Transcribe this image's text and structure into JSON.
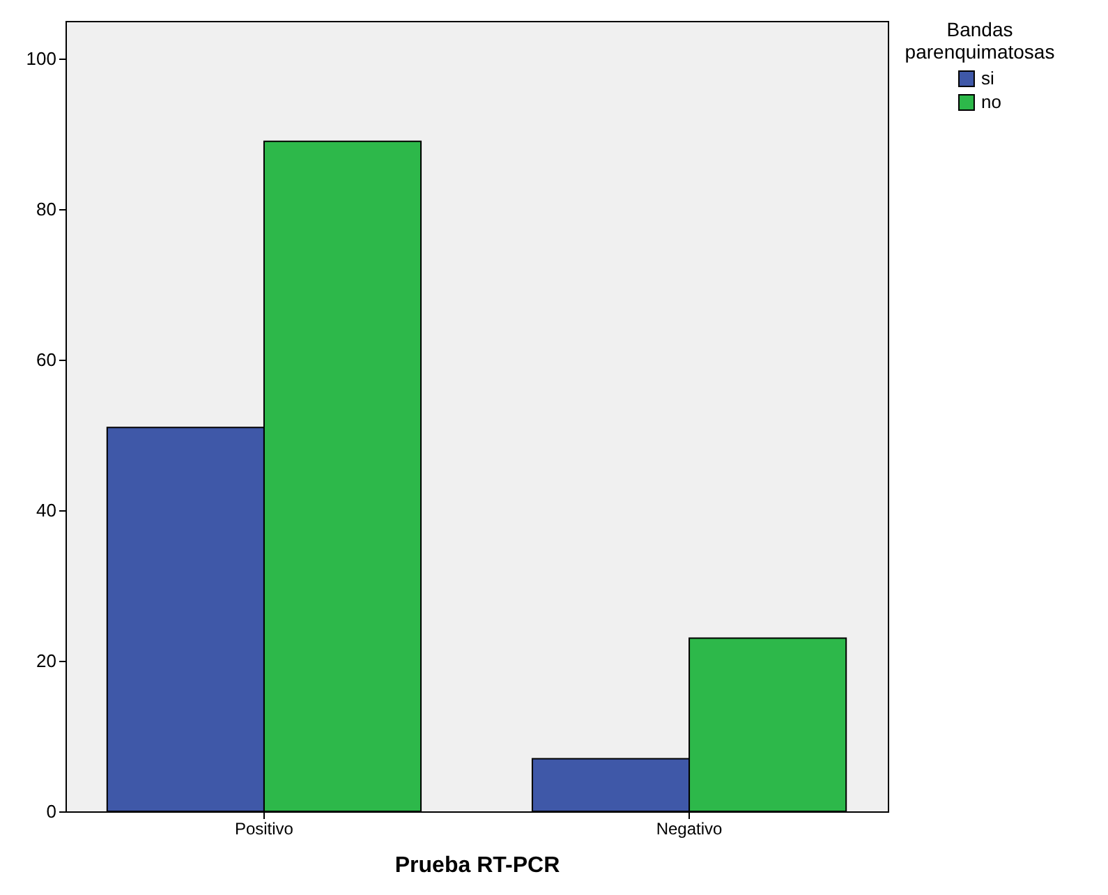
{
  "chart_data": {
    "type": "bar",
    "xlabel": "Prueba RT-PCR",
    "legend_title": "Bandas parenquimatosas",
    "categories": [
      "Positivo",
      "Negativo"
    ],
    "series": [
      {
        "name": "si",
        "color": "#3f58a8",
        "values": [
          51,
          7
        ]
      },
      {
        "name": "no",
        "color": "#2db84a",
        "values": [
          89,
          23
        ]
      }
    ],
    "ylim": [
      0,
      105
    ],
    "yticks": [
      0,
      20,
      40,
      60,
      80,
      100
    ],
    "grid": false,
    "legend": "top right"
  }
}
